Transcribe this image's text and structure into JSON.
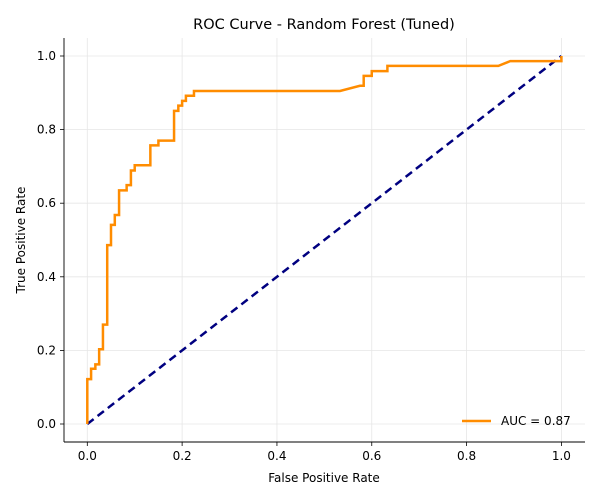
{
  "chart_data": {
    "type": "line",
    "title": "ROC Curve - Random Forest (Tuned)",
    "xlabel": "False Positive Rate",
    "ylabel": "True Positive Rate",
    "xlim": [
      0.0,
      1.0
    ],
    "ylim": [
      0.0,
      1.0
    ],
    "xticks": [
      "0.0",
      "0.2",
      "0.4",
      "0.6",
      "0.8",
      "1.0"
    ],
    "yticks": [
      "0.0",
      "0.2",
      "0.4",
      "0.6",
      "0.8",
      "1.0"
    ],
    "grid": true,
    "legend_position": "bottom-right",
    "colors": {
      "roc": "#ff8c00",
      "baseline": "#000080"
    },
    "series": [
      {
        "name": "AUC = 0.87",
        "style": "solid",
        "x": [
          0.0,
          0.0,
          0.008,
          0.008,
          0.017,
          0.017,
          0.025,
          0.025,
          0.033,
          0.033,
          0.042,
          0.042,
          0.05,
          0.05,
          0.058,
          0.058,
          0.067,
          0.067,
          0.083,
          0.083,
          0.092,
          0.092,
          0.1,
          0.1,
          0.133,
          0.133,
          0.15,
          0.15,
          0.183,
          0.183,
          0.192,
          0.192,
          0.2,
          0.2,
          0.208,
          0.208,
          0.225,
          0.225,
          0.533,
          0.575,
          0.583,
          0.583,
          0.6,
          0.6,
          0.617,
          0.617,
          0.633,
          0.633,
          0.642,
          0.642,
          0.867,
          0.892,
          1.0,
          1.0
        ],
        "y": [
          0.0,
          0.122,
          0.122,
          0.15,
          0.15,
          0.162,
          0.162,
          0.203,
          0.203,
          0.27,
          0.27,
          0.486,
          0.486,
          0.541,
          0.541,
          0.568,
          0.568,
          0.635,
          0.635,
          0.649,
          0.649,
          0.689,
          0.689,
          0.703,
          0.703,
          0.757,
          0.757,
          0.77,
          0.77,
          0.851,
          0.851,
          0.865,
          0.865,
          0.878,
          0.878,
          0.892,
          0.892,
          0.905,
          0.905,
          0.919,
          0.919,
          0.946,
          0.946,
          0.959,
          0.959,
          0.959,
          0.959,
          0.973,
          0.973,
          0.973,
          0.973,
          0.986,
          0.986,
          1.0
        ]
      },
      {
        "name": "",
        "style": "dashed",
        "x": [
          0.0,
          1.0
        ],
        "y": [
          0.0,
          1.0
        ]
      }
    ]
  }
}
